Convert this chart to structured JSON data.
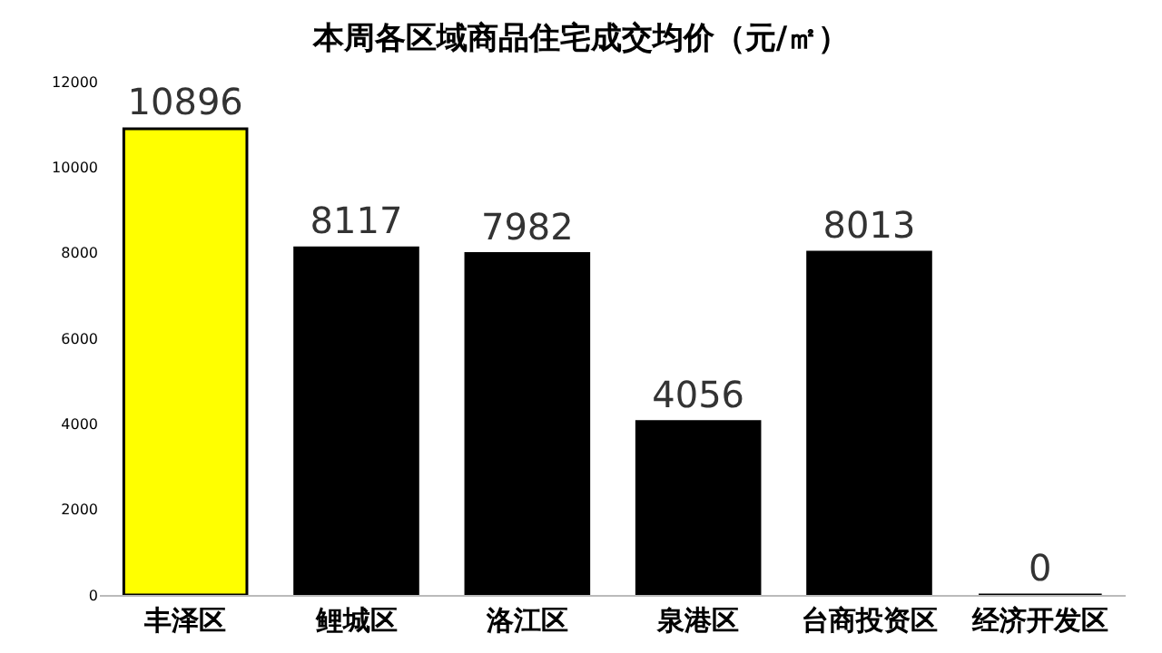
{
  "chart_data": {
    "type": "bar",
    "title": "本周各区域商品住宅成交均价（元/㎡）",
    "categories": [
      "丰泽区",
      "鲤城区",
      "洛江区",
      "泉港区",
      "台商投资区",
      "经济开发区"
    ],
    "values": [
      10896,
      8117,
      7982,
      4056,
      8013,
      0
    ],
    "colors": [
      "#ffff00",
      "#000000",
      "#000000",
      "#000000",
      "#000000",
      "#000000"
    ],
    "ylim": [
      0,
      12000
    ],
    "yticks": [
      0,
      2000,
      4000,
      6000,
      8000,
      10000,
      12000
    ],
    "data_labels": true,
    "grid": false,
    "legend": false
  }
}
